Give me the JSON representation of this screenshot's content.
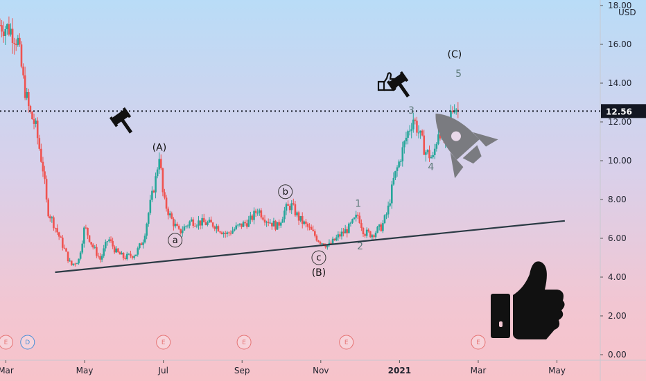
{
  "chart_data": {
    "type": "candlestick",
    "currency": "USD",
    "last_price": "12.56",
    "ylim": [
      0,
      18
    ],
    "y_ticks": [
      "0.00",
      "2.00",
      "4.00",
      "6.00",
      "8.00",
      "10.00",
      "12.00",
      "14.00",
      "16.00",
      "18.00"
    ],
    "y_tick_values": [
      0,
      2,
      4,
      6,
      8,
      10,
      12,
      14,
      16,
      18
    ],
    "x_ticks": [
      "Mar",
      "May",
      "Jul",
      "Sep",
      "Nov",
      "2021",
      "Mar",
      "May"
    ],
    "x_tick_bold": [
      false,
      false,
      false,
      false,
      false,
      true,
      false,
      false
    ],
    "x_tick_months": [
      2,
      4,
      6,
      8,
      10,
      12,
      14,
      16
    ],
    "xlim_months": [
      1.85,
      17.1
    ],
    "price_path_points": [
      [
        1.85,
        17.0
      ],
      [
        2.1,
        16.8
      ],
      [
        2.3,
        16.2
      ],
      [
        2.45,
        14.0
      ],
      [
        2.6,
        12.5
      ],
      [
        2.75,
        11.8
      ],
      [
        2.95,
        9.5
      ],
      [
        3.05,
        7.5
      ],
      [
        3.25,
        6.6
      ],
      [
        3.45,
        5.6
      ],
      [
        3.65,
        4.6
      ],
      [
        3.85,
        4.9
      ],
      [
        4.0,
        6.6
      ],
      [
        4.2,
        5.6
      ],
      [
        4.4,
        4.9
      ],
      [
        4.6,
        6.0
      ],
      [
        4.8,
        5.3
      ],
      [
        5.0,
        5.0
      ],
      [
        5.3,
        5.2
      ],
      [
        5.5,
        6.0
      ],
      [
        5.65,
        7.6
      ],
      [
        5.8,
        9.0
      ],
      [
        5.9,
        10.4
      ],
      [
        6.0,
        8.0
      ],
      [
        6.2,
        7.0
      ],
      [
        6.4,
        6.3
      ],
      [
        6.7,
        6.9
      ],
      [
        7.0,
        6.8
      ],
      [
        7.3,
        6.7
      ],
      [
        7.6,
        6.2
      ],
      [
        7.9,
        6.6
      ],
      [
        8.2,
        6.9
      ],
      [
        8.4,
        7.5
      ],
      [
        8.6,
        7.0
      ],
      [
        8.9,
        6.6
      ],
      [
        9.1,
        7.5
      ],
      [
        9.25,
        7.7
      ],
      [
        9.45,
        7.0
      ],
      [
        9.7,
        6.5
      ],
      [
        9.95,
        5.9
      ],
      [
        10.2,
        5.6
      ],
      [
        10.45,
        6.1
      ],
      [
        10.7,
        6.5
      ],
      [
        10.95,
        7.2
      ],
      [
        11.1,
        6.3
      ],
      [
        11.3,
        6.2
      ],
      [
        11.55,
        6.6
      ],
      [
        11.7,
        7.4
      ],
      [
        11.85,
        9.0
      ],
      [
        12.0,
        10.0
      ],
      [
        12.2,
        11.4
      ],
      [
        12.35,
        12.2
      ],
      [
        12.5,
        11.4
      ],
      [
        12.65,
        10.5
      ],
      [
        12.85,
        10.1
      ],
      [
        13.0,
        11.7
      ],
      [
        13.15,
        10.9
      ],
      [
        13.3,
        12.4
      ],
      [
        13.4,
        12.9
      ],
      [
        13.5,
        12.56
      ]
    ],
    "trendline": [
      [
        3.25,
        4.25
      ],
      [
        16.2,
        6.9
      ]
    ],
    "waves": [
      {
        "label": "(A)",
        "x": 5.9,
        "y": 10.7,
        "style": "paren"
      },
      {
        "label": "(B)",
        "x": 9.95,
        "y": 4.25,
        "style": "paren"
      },
      {
        "label": "(C)",
        "x": 13.4,
        "y": 15.5,
        "style": "paren"
      },
      {
        "label": "a",
        "x": 6.3,
        "y": 5.9,
        "style": "circle"
      },
      {
        "label": "b",
        "x": 9.1,
        "y": 8.4,
        "style": "circle"
      },
      {
        "label": "c",
        "x": 9.95,
        "y": 5.0,
        "style": "circle"
      },
      {
        "label": "1",
        "x": 10.95,
        "y": 7.8,
        "style": "num"
      },
      {
        "label": "2",
        "x": 11.0,
        "y": 5.6,
        "style": "num"
      },
      {
        "label": "3",
        "x": 12.3,
        "y": 12.6,
        "style": "num"
      },
      {
        "label": "4",
        "x": 12.8,
        "y": 9.7,
        "style": "num"
      },
      {
        "label": "5",
        "x": 13.5,
        "y": 14.5,
        "style": "num"
      }
    ],
    "events": [
      {
        "label": "E",
        "x": 2.0,
        "kind": "earnings"
      },
      {
        "label": "D",
        "x": 2.55,
        "kind": "dividend"
      },
      {
        "label": "E",
        "x": 6.0,
        "kind": "earnings"
      },
      {
        "label": "E",
        "x": 8.05,
        "kind": "earnings"
      },
      {
        "label": "E",
        "x": 10.65,
        "kind": "earnings"
      },
      {
        "label": "E",
        "x": 14.0,
        "kind": "earnings"
      }
    ],
    "colors": {
      "up": "#26a69a",
      "down": "#ef5350",
      "price_line": "#131722",
      "label_bg": "#131722",
      "trendline": "#2a3a44",
      "earnings": "#e57373",
      "dividend": "#4a8fd8"
    }
  },
  "icons": [
    "gavel-icon",
    "gavel-icon",
    "pointing-hand-icon",
    "rocket-icon",
    "thumbs-up-icon"
  ]
}
